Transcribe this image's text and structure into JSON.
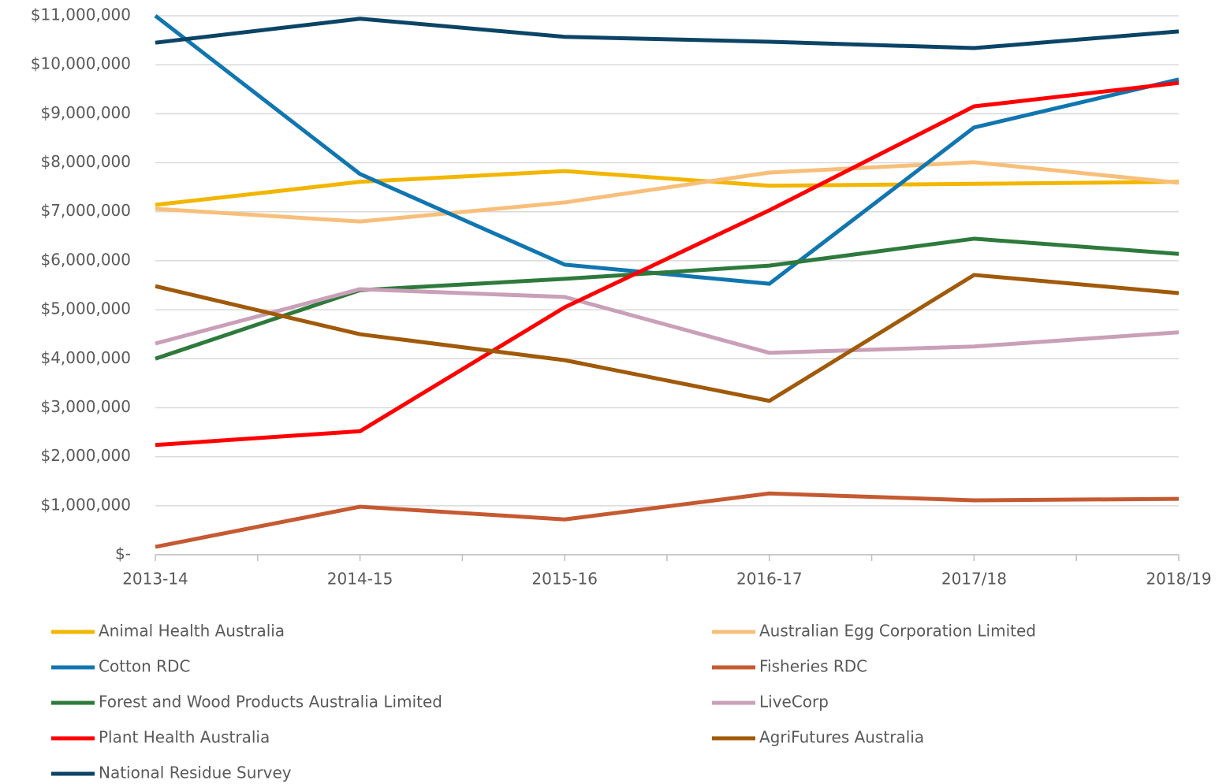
{
  "chart_data": {
    "type": "line",
    "categories": [
      "2013-14",
      "2014-15",
      "2015-16",
      "2016-17",
      "2017/18",
      "2018/19"
    ],
    "series": [
      {
        "name": "Animal Health Australia",
        "color": "#f2b600",
        "values": [
          7140000,
          7610000,
          7830000,
          7530000,
          7570000,
          7610000
        ]
      },
      {
        "name": "Australian Egg Corporation Limited",
        "color": "#f8bf7b",
        "values": [
          7060000,
          6800000,
          7190000,
          7800000,
          8010000,
          7590000
        ]
      },
      {
        "name": "Cotton RDC",
        "color": "#1176b0",
        "values": [
          11000000,
          7770000,
          5920000,
          5530000,
          8720000,
          9700000
        ]
      },
      {
        "name": "Fisheries RDC",
        "color": "#c55a32",
        "values": [
          160000,
          980000,
          720000,
          1250000,
          1110000,
          1140000
        ]
      },
      {
        "name": "Forest and Wood Products Australia Limited",
        "color": "#2e7a3c",
        "values": [
          4000000,
          5400000,
          5630000,
          5900000,
          6450000,
          6140000
        ]
      },
      {
        "name": "LiveCorp",
        "color": "#c9a0b8",
        "values": [
          4310000,
          5420000,
          5260000,
          4120000,
          4250000,
          4540000
        ]
      },
      {
        "name": "Plant Health Australia",
        "color": "#ff0000",
        "values": [
          2240000,
          2520000,
          5050000,
          7030000,
          9150000,
          9630000
        ]
      },
      {
        "name": "AgriFutures Australia",
        "color": "#a05a0a",
        "values": [
          5480000,
          4500000,
          3970000,
          3140000,
          5710000,
          5340000
        ]
      },
      {
        "name": "National Residue Survey",
        "color": "#0c4466",
        "values": [
          10450000,
          10940000,
          10570000,
          10470000,
          10340000,
          10680000
        ]
      }
    ],
    "ylim": [
      0,
      11000000
    ],
    "yticks": [
      {
        "value": 0,
        "label": "$-"
      },
      {
        "value": 1000000,
        "label": "$1,000,000"
      },
      {
        "value": 2000000,
        "label": "$2,000,000"
      },
      {
        "value": 3000000,
        "label": "$3,000,000"
      },
      {
        "value": 4000000,
        "label": "$4,000,000"
      },
      {
        "value": 5000000,
        "label": "$5,000,000"
      },
      {
        "value": 6000000,
        "label": "$6,000,000"
      },
      {
        "value": 7000000,
        "label": "$7,000,000"
      },
      {
        "value": 8000000,
        "label": "$8,000,000"
      },
      {
        "value": 9000000,
        "label": "$9,000,000"
      },
      {
        "value": 10000000,
        "label": "$10,000,000"
      },
      {
        "value": 11000000,
        "label": "$11,000,000"
      }
    ],
    "grid": true
  }
}
